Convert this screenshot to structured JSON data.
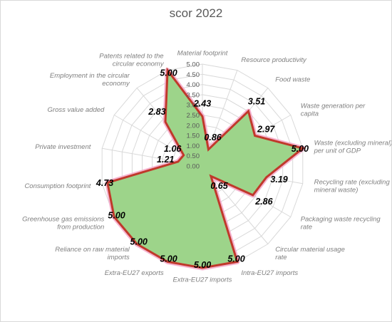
{
  "chart_data": {
    "type": "radar",
    "title": "scor 2022",
    "axes": [
      {
        "label": "Material footprint",
        "value": 2.43
      },
      {
        "label": "Resource productivity",
        "value": 0.86
      },
      {
        "label": "Food waste",
        "value": 3.51
      },
      {
        "label": "Waste generation per capita",
        "value": 2.97
      },
      {
        "label": "Waste (excluding mineral) per unit of GDP",
        "value": 5.0
      },
      {
        "label": "Recycling rate (excluding mineral waste)",
        "value": 3.19
      },
      {
        "label": "Packaging waste recycling rate",
        "value": 2.86
      },
      {
        "label": "Circular material usage rate",
        "value": 0.65
      },
      {
        "label": "Intra-EU27 imports",
        "value": 5.0
      },
      {
        "label": "Extra-EU27 imports",
        "value": 5.0
      },
      {
        "label": "Extra-EU27 exports",
        "value": 5.0
      },
      {
        "label": "Reliance on raw material imports",
        "value": 5.0
      },
      {
        "label": "Greenhouse gas emissions from production",
        "value": 5.0
      },
      {
        "label": "Consumption footprint",
        "value": 4.73
      },
      {
        "label": "Private investment",
        "value": 1.21
      },
      {
        "label": "Gross value added",
        "value": 1.06
      },
      {
        "label": "Employment in the circular economy",
        "value": 2.83
      },
      {
        "label": "Patents related to the circular economy",
        "value": 5.0
      }
    ],
    "value_labels": [
      "2.43",
      "0.86",
      "3.51",
      "2.97",
      "5.00",
      "3.19",
      "2.86",
      "0.65",
      "5.00",
      "5.00",
      "5.00",
      "5.00",
      "5.00",
      "4.73",
      "1.21",
      "1.06",
      "2.83",
      "5.00"
    ],
    "ticks": [
      "0.00",
      "0.50",
      "1.00",
      "1.50",
      "2.00",
      "2.50",
      "3.00",
      "3.50",
      "4.00",
      "4.50",
      "5.00"
    ],
    "rlim": [
      0,
      5
    ],
    "grid": true,
    "legend": "none"
  },
  "colors": {
    "fill": "#9dd48a",
    "stroke": "#c0392b",
    "halo": "#f4a6c8",
    "grid": "#d9d9d9",
    "leader": "#a6a6a6"
  }
}
